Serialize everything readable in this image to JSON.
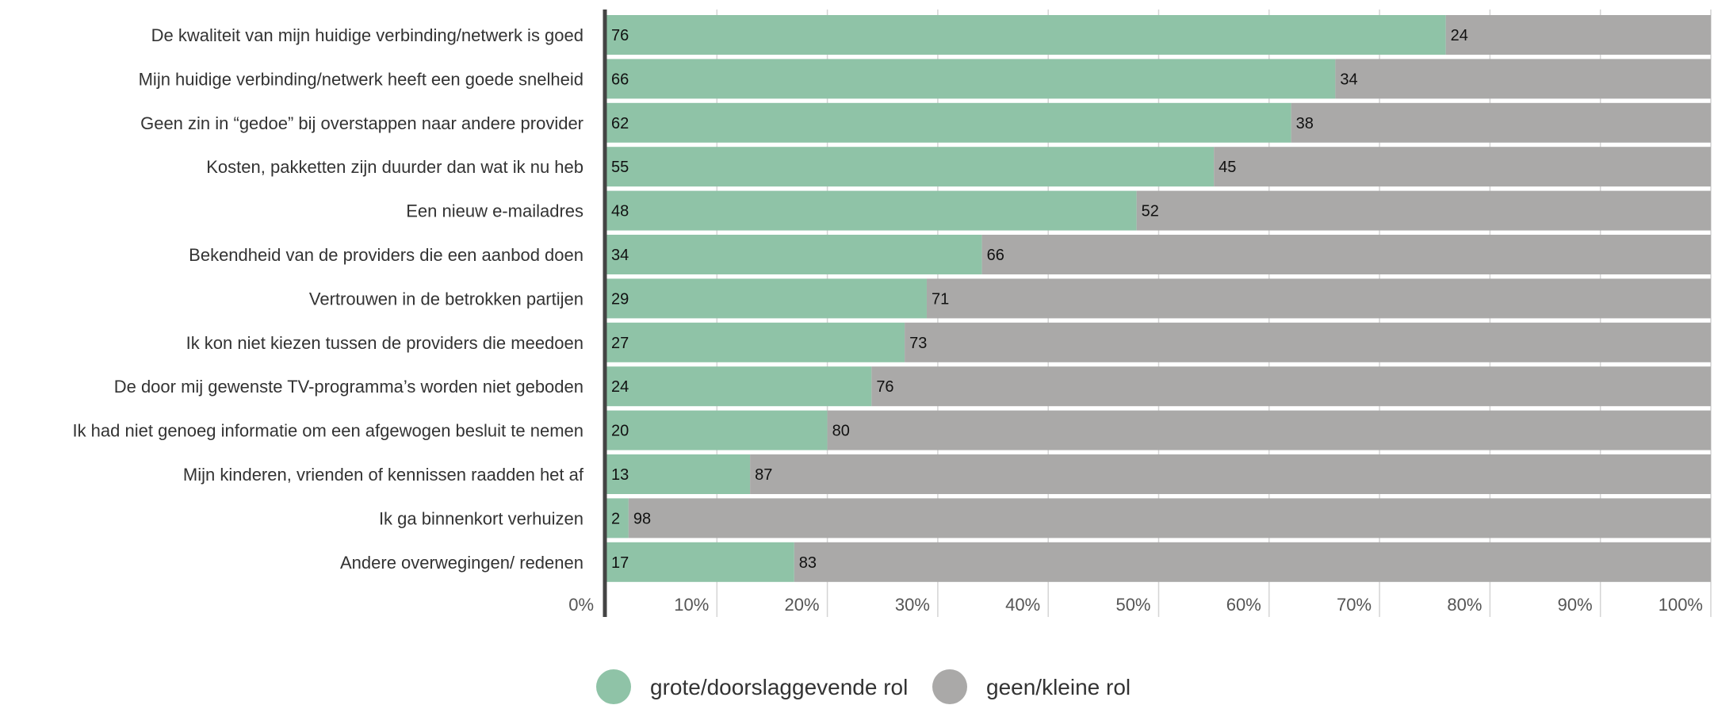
{
  "chart_data": {
    "type": "bar",
    "orientation": "horizontal",
    "stacked": true,
    "categories": [
      "De kwaliteit van mijn huidige verbinding/netwerk is goed",
      "Mijn huidige verbinding/netwerk heeft een goede snelheid",
      "Geen zin in “gedoe” bij overstappen naar andere provider",
      "Kosten, pakketten zijn duurder dan wat ik nu heb",
      "Een nieuw e-mailadres",
      "Bekendheid van de providers die een aanbod doen",
      "Vertrouwen in de betrokken partijen",
      "Ik kon niet kiezen tussen de providers die meedoen",
      "De door mij gewenste TV-programma’s worden niet geboden",
      "Ik had niet genoeg informatie om een afgewogen besluit te nemen",
      "Mijn kinderen, vrienden of kennissen raadden het af",
      "Ik ga binnenkort verhuizen",
      "Andere overwegingen/ redenen"
    ],
    "series": [
      {
        "name": "grote/doorslaggevende rol",
        "color": "#8fc3a7",
        "values": [
          76,
          66,
          62,
          55,
          48,
          34,
          29,
          27,
          24,
          20,
          13,
          2,
          17
        ]
      },
      {
        "name": "geen/kleine rol",
        "color": "#aaa9a8",
        "values": [
          24,
          34,
          38,
          45,
          52,
          66,
          71,
          73,
          76,
          80,
          87,
          98,
          83
        ]
      }
    ],
    "xlim": [
      0,
      100
    ],
    "x_ticks": [
      "0%",
      "10%",
      "20%",
      "30%",
      "40%",
      "50%",
      "60%",
      "70%",
      "80%",
      "90%",
      "100%"
    ],
    "grid": true,
    "legend_position": "bottom",
    "title": "",
    "xlabel": "",
    "ylabel": ""
  }
}
